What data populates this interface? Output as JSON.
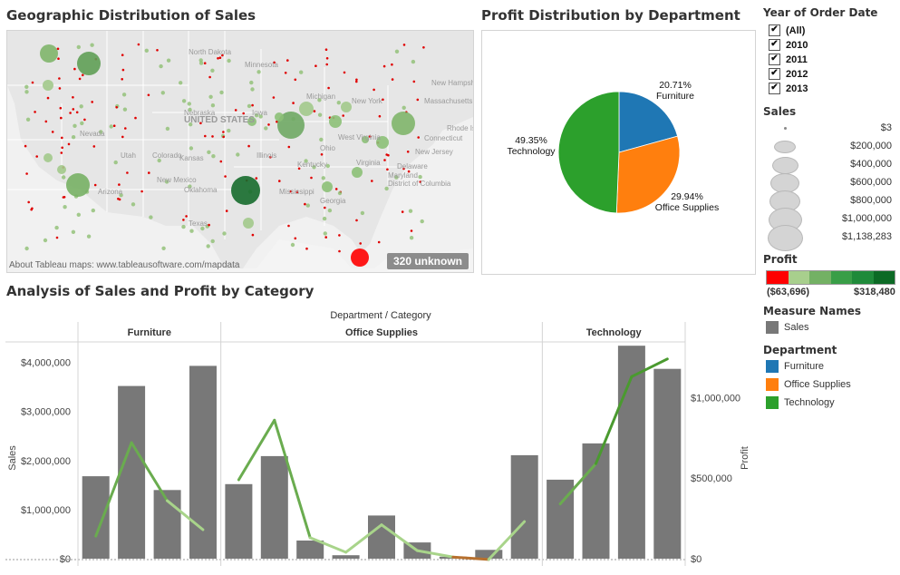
{
  "titles": {
    "map": "Geographic Distribution of Sales",
    "pie": "Profit Distribution by Department",
    "combo": "Analysis of Sales and Profit by Category"
  },
  "map": {
    "attribution": "About Tableau maps: www.tableausoftware.com/mapdata",
    "unknown_badge": "320 unknown",
    "place_labels": [
      "North Dakota",
      "Minnesota",
      "UNITED STATES",
      "Nebraska",
      "Iowa",
      "Michigan",
      "Nevada",
      "Utah",
      "Colorado",
      "Kansas",
      "Illinois",
      "Ohio",
      "Arizona",
      "Oklahoma",
      "New Mexico",
      "Texas",
      "Mississippi",
      "Georgia",
      "Kentucky",
      "West Virginia",
      "Virginia",
      "New York",
      "New Hampshire",
      "Massachusetts",
      "Rhode Island",
      "Connecticut",
      "New Jersey",
      "Delaware",
      "Maryland",
      "District of Columbia"
    ]
  },
  "filters": {
    "title": "Year of Order Date",
    "options": [
      {
        "label": "(All)",
        "checked": true
      },
      {
        "label": "2010",
        "checked": true
      },
      {
        "label": "2011",
        "checked": true
      },
      {
        "label": "2012",
        "checked": true
      },
      {
        "label": "2013",
        "checked": true
      }
    ]
  },
  "legend_sales": {
    "title": "Sales",
    "items": [
      "$3",
      "$200,000",
      "$400,000",
      "$600,000",
      "$800,000",
      "$1,000,000",
      "$1,138,283"
    ]
  },
  "legend_profit": {
    "title": "Profit",
    "min_label": "($63,696)",
    "max_label": "$318,480",
    "colors": [
      "#ff0000",
      "#a8cf8d",
      "#73b164",
      "#399e47",
      "#1f8a3a",
      "#0c6a25"
    ]
  },
  "legend_measure": {
    "title": "Measure Names",
    "items": [
      {
        "label": "Sales",
        "color": "#787878"
      }
    ]
  },
  "legend_department": {
    "title": "Department",
    "items": [
      {
        "label": "Furniture",
        "color": "#1f77b4"
      },
      {
        "label": "Office Supplies",
        "color": "#ff7f0e"
      },
      {
        "label": "Technology",
        "color": "#2ca02c"
      }
    ]
  },
  "chart_data": [
    {
      "type": "pie",
      "title": "Profit Distribution by Department",
      "slices": [
        {
          "name": "Furniture",
          "percent": 20.71,
          "label": "20.71%",
          "color": "#1f77b4"
        },
        {
          "name": "Office Supplies",
          "percent": 29.94,
          "label": "29.94%",
          "color": "#ff7f0e"
        },
        {
          "name": "Technology",
          "percent": 49.35,
          "label": "49.35%",
          "color": "#2ca02c"
        }
      ]
    },
    {
      "type": "bar",
      "title": "Analysis of Sales and Profit by Category",
      "header_label": "Department  /  Category",
      "ylabel": "Sales",
      "y2label": "Profit",
      "ylim": [
        0,
        4400000
      ],
      "y2lim": [
        0,
        1340000
      ],
      "yticks": [
        {
          "value": 0,
          "label": "$0"
        },
        {
          "value": 1000000,
          "label": "$1,000,000"
        },
        {
          "value": 2000000,
          "label": "$2,000,000"
        },
        {
          "value": 3000000,
          "label": "$3,000,000"
        },
        {
          "value": 4000000,
          "label": "$4,000,000"
        }
      ],
      "y2ticks": [
        {
          "value": 0,
          "label": "$0"
        },
        {
          "value": 500000,
          "label": "$500,000"
        },
        {
          "value": 1000000,
          "label": "$1,000,000"
        }
      ],
      "departments": [
        {
          "name": "Furniture",
          "sales": [
            1680000,
            3520000,
            1400000,
            3930000
          ],
          "profit": [
            140000,
            720000,
            360000,
            180000
          ]
        },
        {
          "name": "Office Supplies",
          "sales": [
            1520000,
            2090000,
            370000,
            70000,
            880000,
            330000,
            40000,
            180000,
            2110000
          ],
          "profit": [
            490000,
            860000,
            130000,
            40000,
            210000,
            50000,
            10000,
            -5000,
            230000
          ]
        },
        {
          "name": "Technology",
          "sales": [
            1610000,
            2350000,
            4340000,
            3870000
          ],
          "profit": [
            340000,
            590000,
            1130000,
            1240000
          ]
        }
      ]
    }
  ]
}
